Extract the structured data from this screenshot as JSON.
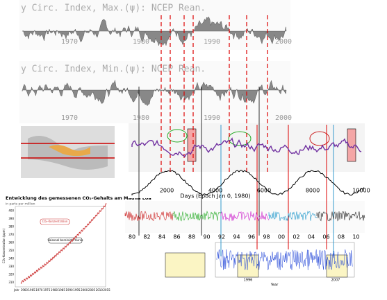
{
  "panels": {
    "max_index": {
      "title": "y Circ. Index, Max.(ψ): NCEP Rean.",
      "years": [
        "1970",
        "1980",
        "1990",
        "2000"
      ]
    },
    "min_index": {
      "title": "y Circ. Index, Min.(ψ): NCEP Rean.",
      "years": [
        "1970",
        "1980",
        "1990",
        "2000"
      ]
    },
    "co2": {
      "title": "Entwicklung des gemessenen CO₂-Gehalts am Mauna Loa",
      "subtitle": "in parts per million",
      "y_label": "CO₂-Konzentration (ppm)",
      "legend": [
        "CO₂-Konzentration",
        "Saisonal bereinigte Kurve"
      ],
      "yticks": [
        "310",
        "320",
        "330",
        "340",
        "350",
        "360",
        "370",
        "380",
        "390",
        "400"
      ],
      "xticks": [
        "Jahr",
        "1960",
        "1965",
        "1970",
        "1975",
        "1980",
        "1985",
        "1990",
        "1995",
        "2000",
        "2005",
        "2010",
        "2015"
      ]
    },
    "days_axis": {
      "label": "Days (Epoch Jan 0, 1980)",
      "ticks": [
        "2000",
        "4000",
        "6000",
        "8000",
        "10000"
      ]
    },
    "year_axis": {
      "ticks": [
        "80",
        "82",
        "84",
        "86",
        "88",
        "90",
        "92",
        "94",
        "96",
        "98",
        "00",
        "02",
        "04",
        "06",
        "08",
        "10"
      ]
    },
    "bottom": {
      "labels": [
        "1996",
        "2007"
      ],
      "x_label": "Year"
    }
  }
}
